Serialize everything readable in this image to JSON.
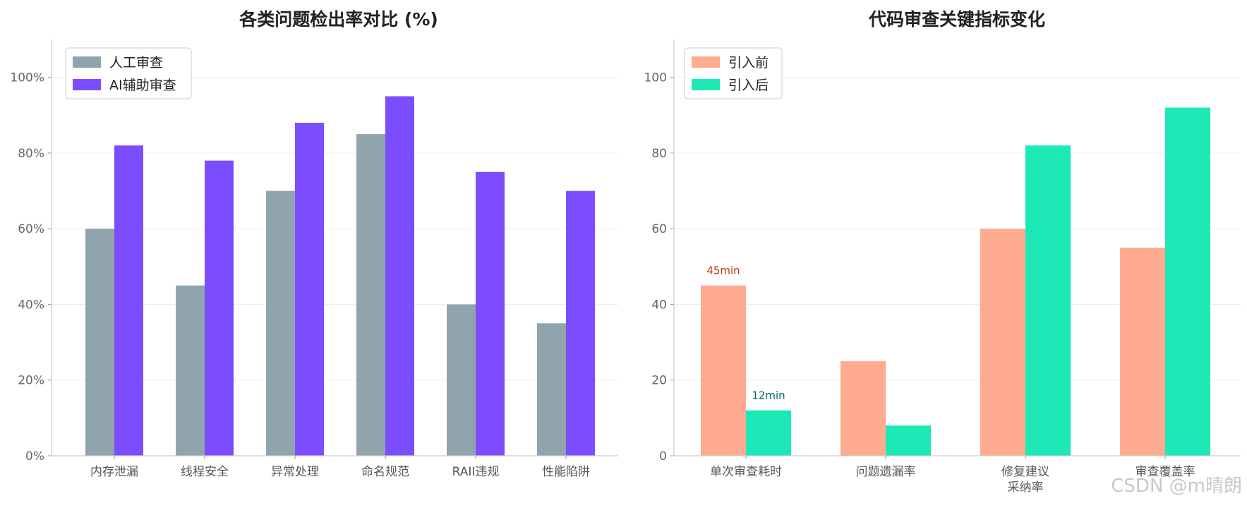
{
  "chart_data": [
    {
      "type": "bar",
      "title": "各类问题检出率对比 (%)",
      "categories": [
        "内存泄漏",
        "线程安全",
        "异常处理",
        "命名规范",
        "RAII违规",
        "性能陷阱"
      ],
      "series": [
        {
          "name": "人工审查",
          "values": [
            60,
            45,
            70,
            85,
            40,
            35
          ],
          "color": "#90a4ae"
        },
        {
          "name": "AI辅助审查",
          "values": [
            82,
            78,
            88,
            95,
            75,
            70
          ],
          "color": "#7c4dff"
        }
      ],
      "ylim": [
        0,
        110
      ],
      "yticks": [
        0,
        20,
        40,
        60,
        80,
        100
      ],
      "ytick_labels": [
        "0%",
        "20%",
        "40%",
        "60%",
        "80%",
        "100%"
      ],
      "legend": "top-left",
      "grid": true
    },
    {
      "type": "bar",
      "title": "代码审查关键指标变化",
      "categories": [
        [
          "单次审查耗时"
        ],
        [
          "问题遗漏率"
        ],
        [
          "修复建议",
          "采纳率"
        ],
        [
          "审查覆盖率"
        ]
      ],
      "series": [
        {
          "name": "引入前",
          "values": [
            45,
            25,
            60,
            55
          ],
          "color": "#ffab91"
        },
        {
          "name": "引入后",
          "values": [
            12,
            8,
            82,
            92
          ],
          "color": "#1de9b6"
        }
      ],
      "annotations": [
        {
          "text": "45min",
          "series": 0,
          "category": 0,
          "color": "#bf360c"
        },
        {
          "text": "12min",
          "series": 1,
          "category": 0,
          "color": "#00695c"
        }
      ],
      "ylim": [
        0,
        110
      ],
      "yticks": [
        0,
        20,
        40,
        60,
        80,
        100
      ],
      "ytick_labels": [
        "0",
        "20",
        "40",
        "60",
        "80",
        "100"
      ],
      "legend": "top-left",
      "grid": true
    }
  ],
  "watermark": "CSDN @m晴朗"
}
